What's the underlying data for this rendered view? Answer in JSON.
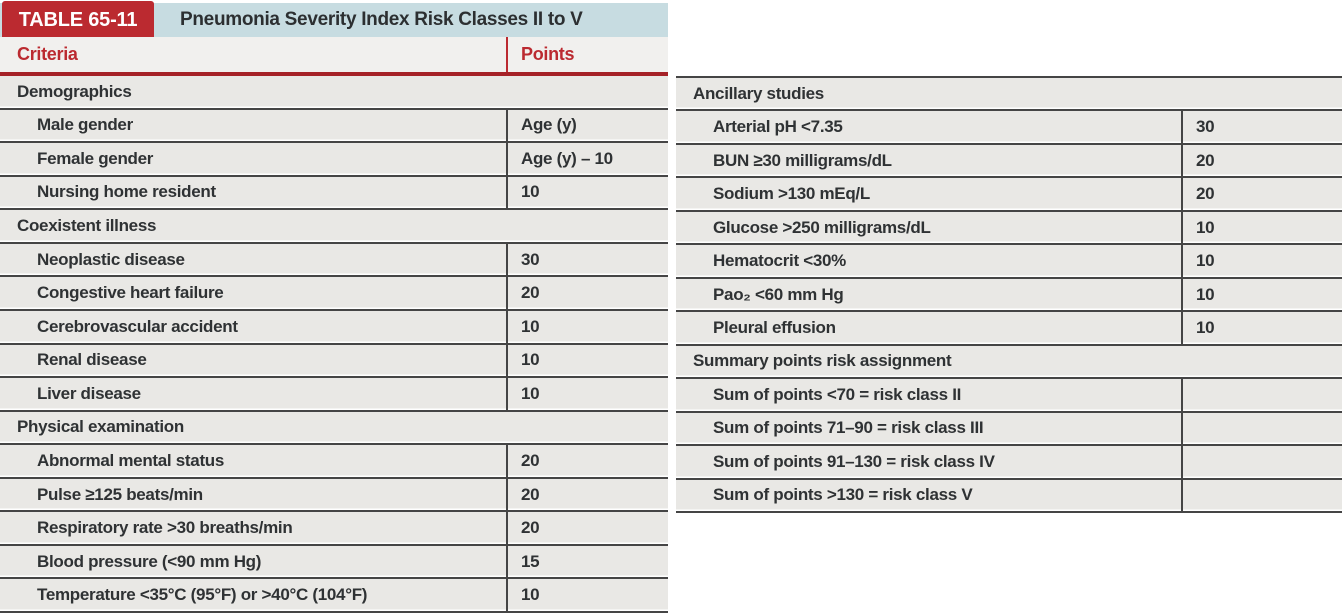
{
  "colors": {
    "accent_red": "#bb2a30",
    "rule_red": "#a52127",
    "header_blue": "#c7dce1",
    "row_gray": "#e9e8e5",
    "header_row_gray": "#f1f0ee",
    "line_dark": "#454545",
    "text_dark": "#2f3234"
  },
  "left_table": {
    "badge": "TABLE 65-11",
    "title": "Pneumonia Severity Index Risk Classes II to V",
    "columns": {
      "criteria": "Criteria",
      "points": "Points"
    },
    "rows": [
      {
        "type": "section",
        "label": "Demographics",
        "points": ""
      },
      {
        "type": "item",
        "label": "Male gender",
        "points": "Age (y)"
      },
      {
        "type": "item",
        "label": "Female gender",
        "points": "Age (y) – 10"
      },
      {
        "type": "item",
        "label": "Nursing home resident",
        "points": "10"
      },
      {
        "type": "section",
        "label": "Coexistent illness",
        "points": ""
      },
      {
        "type": "item",
        "label": "Neoplastic disease",
        "points": "30"
      },
      {
        "type": "item",
        "label": "Congestive heart failure",
        "points": "20"
      },
      {
        "type": "item",
        "label": "Cerebrovascular accident",
        "points": "10"
      },
      {
        "type": "item",
        "label": "Renal disease",
        "points": "10"
      },
      {
        "type": "item",
        "label": "Liver disease",
        "points": "10"
      },
      {
        "type": "section",
        "label": "Physical examination",
        "points": ""
      },
      {
        "type": "item",
        "label": "Abnormal mental status",
        "points": "20"
      },
      {
        "type": "item",
        "label": "Pulse ≥125 beats/min",
        "points": "20"
      },
      {
        "type": "item",
        "label": "Respiratory rate >30 breaths/min",
        "points": "20"
      },
      {
        "type": "item",
        "label": "Blood pressure (<90 mm Hg)",
        "points": "15"
      },
      {
        "type": "item",
        "label": "Temperature <35°C (95°F) or >40°C (104°F)",
        "points": "10"
      }
    ]
  },
  "right_table": {
    "rows": [
      {
        "type": "section",
        "label": "Ancillary studies",
        "points": ""
      },
      {
        "type": "item",
        "label": "Arterial pH <7.35",
        "points": "30"
      },
      {
        "type": "item",
        "label": "BUN ≥30 milligrams/dL",
        "points": "20"
      },
      {
        "type": "item",
        "label": "Sodium >130 mEq/L",
        "points": "20"
      },
      {
        "type": "item",
        "label": "Glucose >250 milligrams/dL",
        "points": "10"
      },
      {
        "type": "item",
        "label": "Hematocrit <30%",
        "points": "10"
      },
      {
        "type": "item",
        "label": "Pao₂ <60 mm Hg",
        "points": "10"
      },
      {
        "type": "item",
        "label": "Pleural effusion",
        "points": "10"
      },
      {
        "type": "section",
        "label": "Summary points risk assignment",
        "points": ""
      },
      {
        "type": "item",
        "label": "Sum of points <70 = risk class II",
        "points": ""
      },
      {
        "type": "item",
        "label": "Sum of points 71–90 = risk class III",
        "points": ""
      },
      {
        "type": "item",
        "label": "Sum of points 91–130 = risk class IV",
        "points": ""
      },
      {
        "type": "item",
        "label": "Sum of points >130 = risk class V",
        "points": ""
      }
    ]
  }
}
